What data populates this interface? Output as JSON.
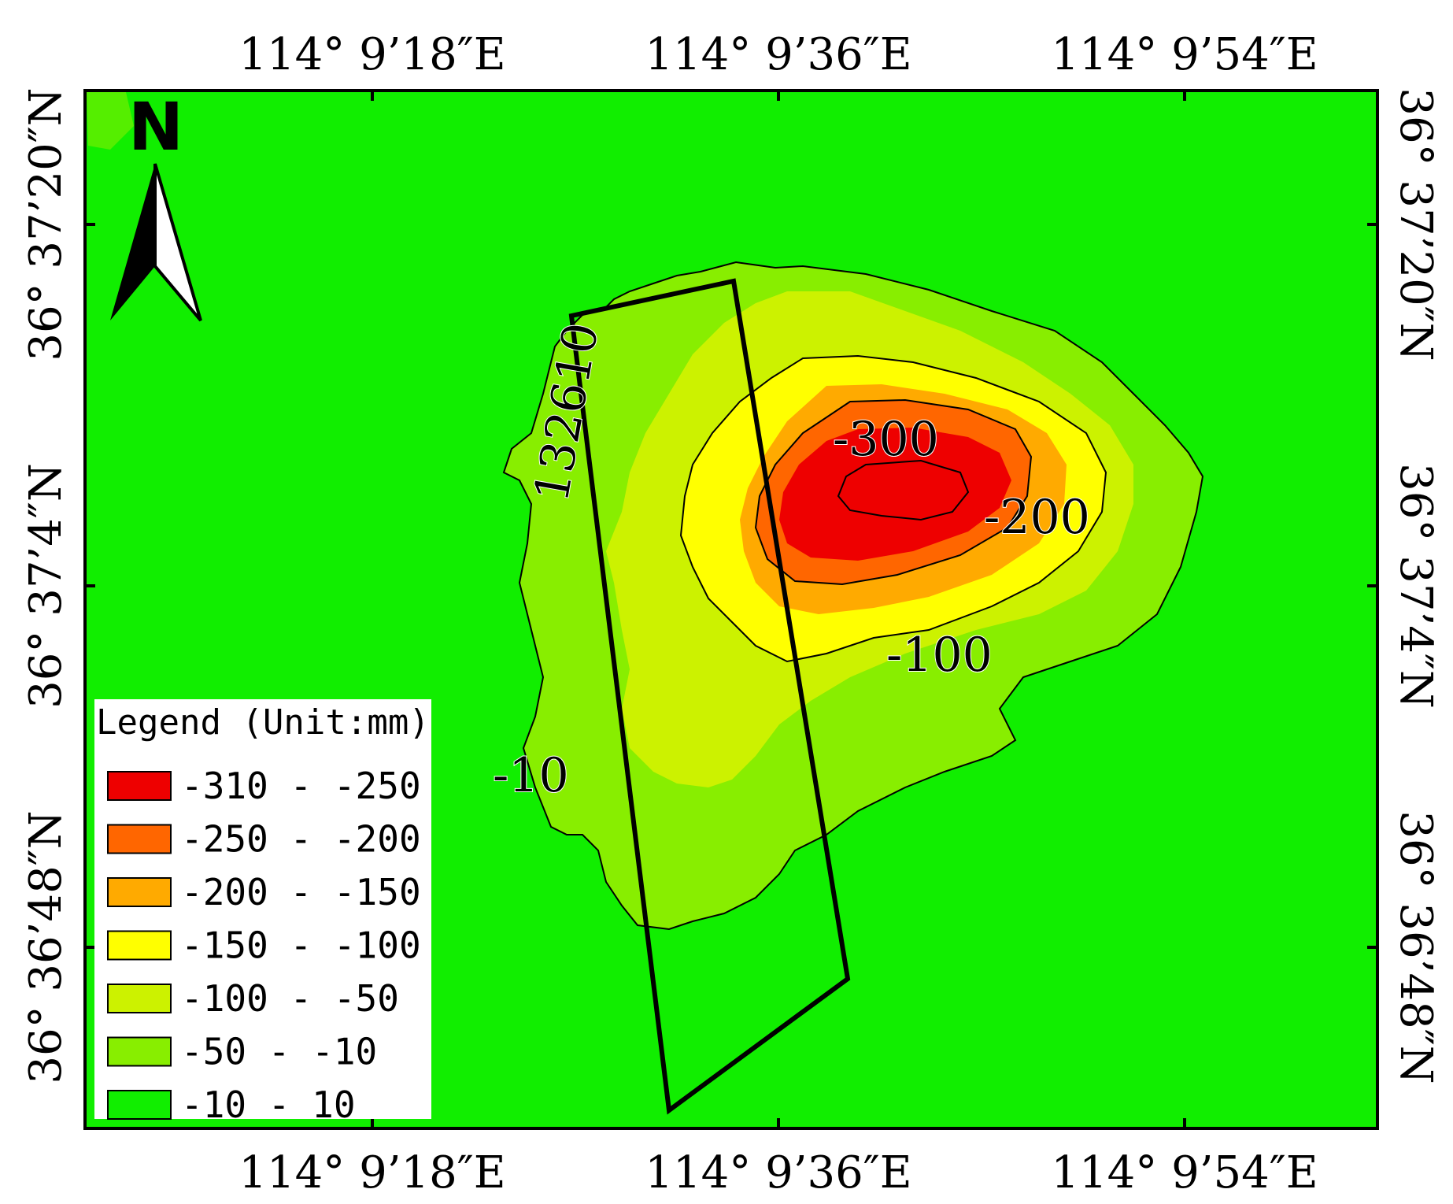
{
  "coords": {
    "top": [
      "114° 9’18″E",
      "114° 9’36″E",
      "114° 9’54″E"
    ],
    "bottom": [
      "114° 9’18″E",
      "114° 9’36″E",
      "114° 9’54″E"
    ],
    "left": [
      "36° 37’20″N",
      "36° 37’4″N",
      "36° 36’48″N"
    ],
    "right": [
      "36° 37’20″N",
      "36° 37’4″N",
      "36° 36’48″N"
    ]
  },
  "north_arrow": {
    "label": "N"
  },
  "contour_labels": {
    "c300": "-300",
    "c200": "-200",
    "c100": "-100",
    "c10": "-10",
    "face": "132610"
  },
  "legend": {
    "title": "Legend (Unit:mm)",
    "items": [
      {
        "label": "-310 - -250",
        "color": "#ee0000"
      },
      {
        "label": "-250 - -200",
        "color": "#ff6600"
      },
      {
        "label": "-200 - -150",
        "color": "#ffaa00"
      },
      {
        "label": "-150 - -100",
        "color": "#ffff00"
      },
      {
        "label": "-100 - -50",
        "color": "#ccf200"
      },
      {
        "label": "-50 - -10",
        "color": "#88ee00"
      },
      {
        "label": "-10 - 10",
        "color": "#11ee00"
      }
    ]
  }
}
